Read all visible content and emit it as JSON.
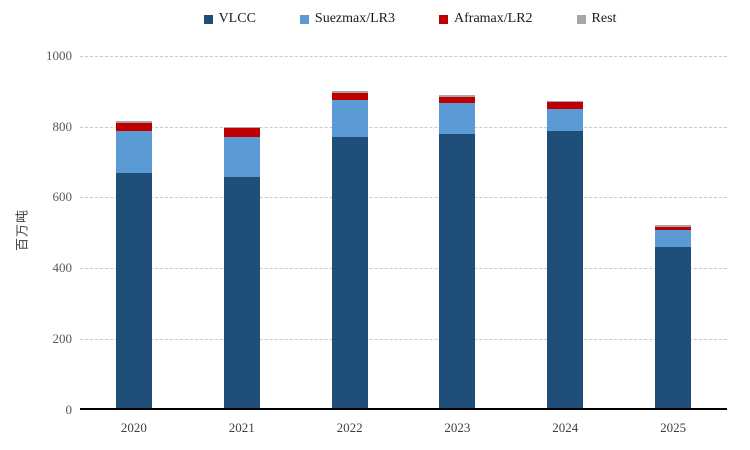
{
  "chart": {
    "y_axis_label": "百万吨"
  },
  "chart_data": {
    "type": "bar",
    "stacked": true,
    "title": "",
    "xlabel": "",
    "ylabel": "百万吨",
    "categories": [
      "2020",
      "2021",
      "2022",
      "2023",
      "2024",
      "2025"
    ],
    "series": [
      {
        "name": "VLCC",
        "color": "#1F4E79",
        "values": [
          668,
          659,
          770,
          780,
          787,
          461
        ]
      },
      {
        "name": "Suezmax/LR3",
        "color": "#5B9BD5",
        "values": [
          119,
          113,
          105,
          88,
          62,
          48
        ]
      },
      {
        "name": "Aframax/LR2",
        "color": "#C00000",
        "values": [
          23,
          24,
          19,
          17,
          20,
          8
        ]
      },
      {
        "name": "Rest",
        "color": "#A6A6A6",
        "values": [
          5,
          4,
          6,
          5,
          5,
          5
        ]
      }
    ],
    "totals": [
      815,
      800,
      900,
      890,
      874,
      522
    ],
    "ylim": [
      0,
      1000
    ],
    "yticks": [
      0,
      200,
      400,
      600,
      800,
      1000
    ],
    "grid": true,
    "legend_position": "top",
    "axis_color": "#000000",
    "gridline_color": "#c9c9c9"
  }
}
